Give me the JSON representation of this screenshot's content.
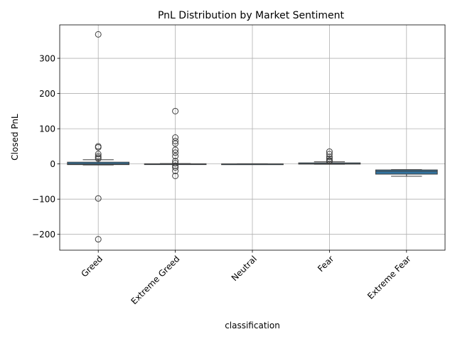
{
  "chart_data": {
    "type": "box",
    "title": "PnL Distribution by Market Sentiment",
    "xlabel": "classification",
    "ylabel": "Closed PnL",
    "categories": [
      "Greed",
      "Extreme Greed",
      "Neutral",
      "Fear",
      "Extreme Fear"
    ],
    "ylim": [
      -245,
      395
    ],
    "yticks": [
      -200,
      -100,
      0,
      100,
      200,
      300
    ],
    "ytick_labels": [
      "−200",
      "−100",
      "0",
      "100",
      "200",
      "300"
    ],
    "grid": true,
    "box_color": "#3274a1",
    "boxes": [
      {
        "category": "Greed",
        "whislo": -3,
        "q1": -2,
        "median": 0,
        "q3": 5,
        "whishi": 12,
        "fliers": [
          368,
          50,
          47,
          28,
          22,
          18,
          15,
          -98,
          -214
        ]
      },
      {
        "category": "Extreme Greed",
        "whislo": -1,
        "q1": -0.5,
        "median": 0,
        "q3": 0.5,
        "whishi": 1,
        "fliers": [
          150,
          75,
          65,
          58,
          40,
          32,
          22,
          8,
          2,
          -5,
          -10,
          -20,
          -34
        ]
      },
      {
        "category": "Neutral",
        "whislo": -0.5,
        "q1": -0.3,
        "median": 0,
        "q3": 0.3,
        "whishi": 0.5,
        "fliers": []
      },
      {
        "category": "Fear",
        "whislo": -1,
        "q1": -0.5,
        "median": 0.5,
        "q3": 3,
        "whishi": 6,
        "fliers": [
          35,
          28,
          20,
          15,
          10,
          8,
          7
        ]
      },
      {
        "category": "Extreme Fear",
        "whislo": -35,
        "q1": -29,
        "median": -21,
        "q3": -17,
        "whishi": -16,
        "fliers": []
      }
    ]
  }
}
